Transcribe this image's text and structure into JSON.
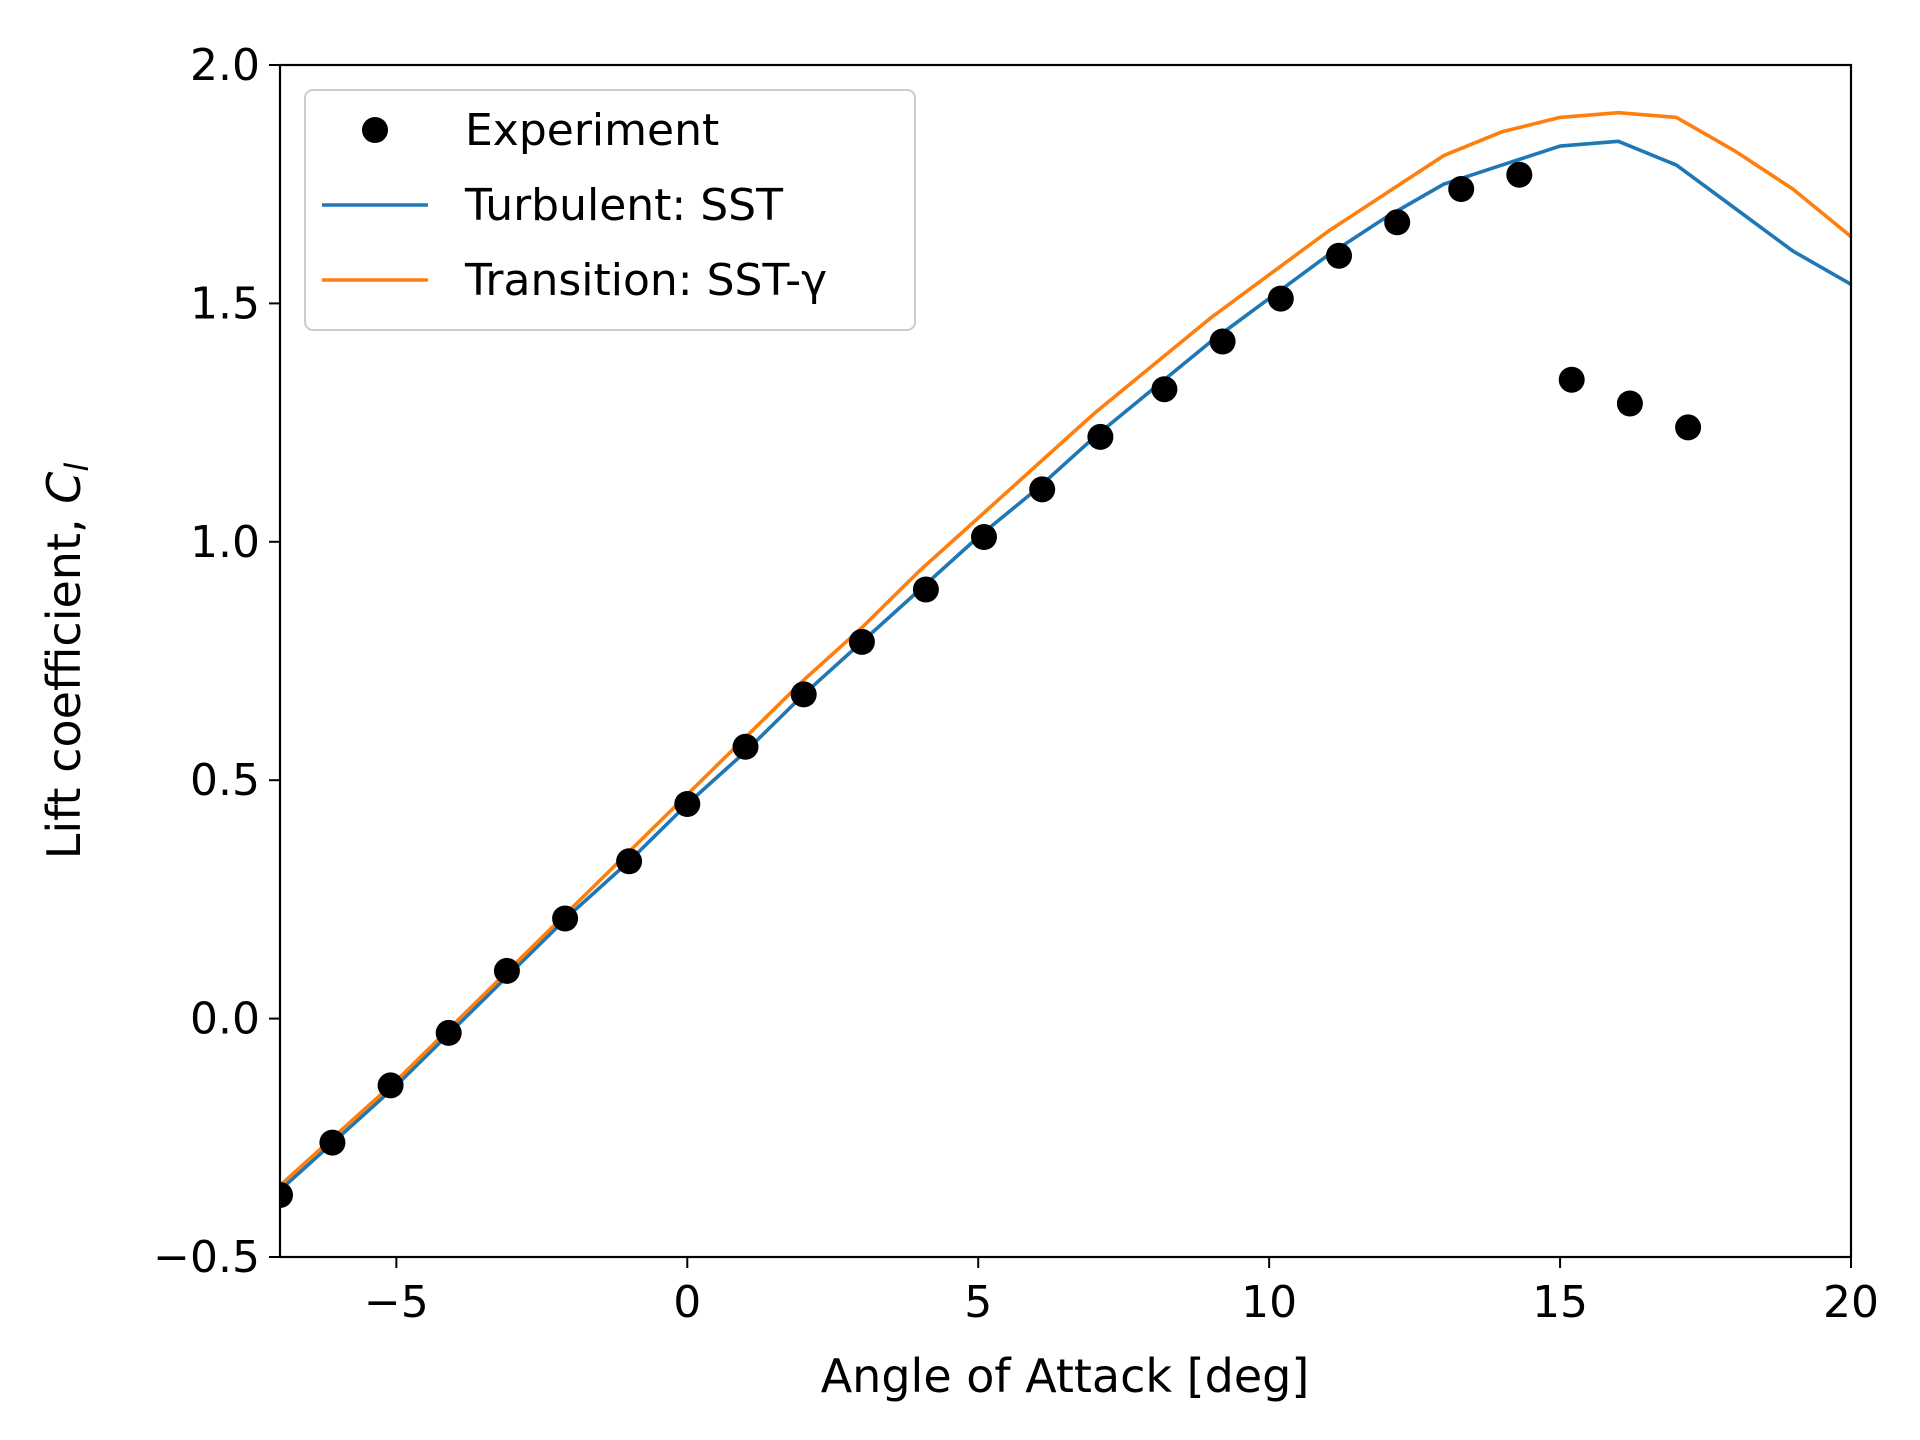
{
  "chart_data": {
    "type": "line",
    "xlabel": "Angle of Attack [deg]",
    "ylabel": "Lift coefficient, ",
    "ylabel_math": "C",
    "ylabel_math_sub": "l",
    "xlim": [
      -7,
      20
    ],
    "ylim": [
      -0.5,
      2.0
    ],
    "xticks": [
      -5,
      0,
      5,
      10,
      15,
      20
    ],
    "xtick_labels": [
      "−5",
      "0",
      "5",
      "10",
      "15",
      "20"
    ],
    "yticks": [
      -0.5,
      0.0,
      0.5,
      1.0,
      1.5,
      2.0
    ],
    "ytick_labels": [
      "−0.5",
      "0.0",
      "0.5",
      "1.0",
      "1.5",
      "2.0"
    ],
    "grid": false,
    "legend_position": "upper-left",
    "series": [
      {
        "name": "Experiment",
        "kind": "markers",
        "color": "#000000",
        "x": [
          -7.0,
          -6.1,
          -5.1,
          -4.1,
          -3.1,
          -2.1,
          -1.0,
          0.0,
          1.0,
          2.0,
          3.0,
          4.1,
          5.1,
          6.1,
          7.1,
          8.2,
          9.2,
          10.2,
          11.2,
          12.2,
          13.3,
          14.3,
          15.2,
          16.2,
          17.2
        ],
        "y": [
          -0.37,
          -0.26,
          -0.14,
          -0.03,
          0.1,
          0.21,
          0.33,
          0.45,
          0.57,
          0.68,
          0.79,
          0.9,
          1.01,
          1.11,
          1.22,
          1.32,
          1.42,
          1.51,
          1.6,
          1.67,
          1.74,
          1.77,
          1.34,
          1.29,
          1.24
        ]
      },
      {
        "name": "Turbulent: SST",
        "kind": "line",
        "color": "#1f77b4",
        "x": [
          -7,
          -6,
          -5,
          -4,
          -3,
          -2,
          -1,
          0,
          1,
          2,
          3,
          4,
          5,
          6,
          7,
          8,
          9,
          10,
          11,
          12,
          13,
          14,
          15,
          16,
          17,
          18,
          19,
          20
        ],
        "y": [
          -0.36,
          -0.25,
          -0.14,
          -0.02,
          0.1,
          0.22,
          0.33,
          0.45,
          0.56,
          0.68,
          0.79,
          0.9,
          1.01,
          1.11,
          1.22,
          1.32,
          1.42,
          1.51,
          1.6,
          1.68,
          1.75,
          1.79,
          1.83,
          1.84,
          1.79,
          1.7,
          1.61,
          1.54
        ]
      },
      {
        "name": "Transition: SST-γ",
        "kind": "line",
        "color": "#ff7f0e",
        "x": [
          -7,
          -6,
          -5,
          -4,
          -3,
          -2,
          -1,
          0,
          1,
          2,
          3,
          4,
          5,
          6,
          7,
          8,
          9,
          10,
          11,
          12,
          13,
          14,
          15,
          16,
          17,
          18,
          19,
          20
        ],
        "y": [
          -0.35,
          -0.24,
          -0.13,
          -0.01,
          0.11,
          0.23,
          0.35,
          0.47,
          0.59,
          0.71,
          0.82,
          0.94,
          1.05,
          1.16,
          1.27,
          1.37,
          1.47,
          1.56,
          1.65,
          1.73,
          1.81,
          1.86,
          1.89,
          1.9,
          1.89,
          1.82,
          1.74,
          1.64
        ]
      }
    ]
  }
}
